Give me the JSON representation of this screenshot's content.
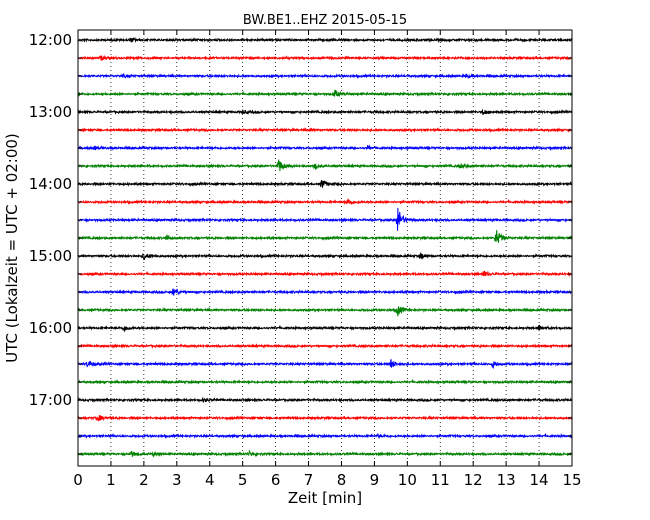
{
  "chart_data": {
    "type": "line",
    "title": "BW.BE1..EHZ 2015-05-15",
    "xlabel": "Zeit  [min]",
    "ylabel": "UTC (Lokalzeit = UTC + 02:00)",
    "xlim": [
      0,
      15
    ],
    "x_ticks": [
      "0",
      "1",
      "2",
      "3",
      "4",
      "5",
      "6",
      "7",
      "8",
      "9",
      "10",
      "11",
      "12",
      "13",
      "14",
      "15"
    ],
    "y_tick_labels": [
      "12:00",
      "13:00",
      "14:00",
      "15:00",
      "16:00",
      "17:00"
    ],
    "grid": "vertical dotted",
    "trace_colors": [
      "#000000",
      "#ff0000",
      "#0000ff",
      "#008000"
    ],
    "trace_interval_minutes": 15,
    "series": [
      {
        "start": "12:00",
        "color": "#000000",
        "events": [
          [
            1.6,
            0.4
          ]
        ]
      },
      {
        "start": "12:15",
        "color": "#ff0000",
        "events": [
          [
            0.7,
            0.5
          ]
        ]
      },
      {
        "start": "12:30",
        "color": "#0000ff",
        "events": [
          [
            1.4,
            0.3
          ],
          [
            11.8,
            0.4
          ]
        ]
      },
      {
        "start": "12:45",
        "color": "#008000",
        "events": [
          [
            7.8,
            0.9
          ]
        ]
      },
      {
        "start": "13:00",
        "color": "#000000",
        "events": [
          [
            5.0,
            0.4
          ],
          [
            12.3,
            0.7
          ]
        ]
      },
      {
        "start": "13:15",
        "color": "#ff0000",
        "events": [
          [
            7.0,
            0.3
          ]
        ]
      },
      {
        "start": "13:30",
        "color": "#0000ff",
        "events": [
          [
            0.5,
            0.4
          ],
          [
            8.8,
            0.4
          ]
        ]
      },
      {
        "start": "13:45",
        "color": "#008000",
        "events": [
          [
            6.1,
            1.6
          ],
          [
            7.2,
            0.6
          ],
          [
            11.6,
            0.6
          ]
        ]
      },
      {
        "start": "14:00",
        "color": "#000000",
        "events": [
          [
            7.4,
            1.1
          ]
        ]
      },
      {
        "start": "14:15",
        "color": "#ff0000",
        "events": [
          [
            8.2,
            0.8
          ]
        ]
      },
      {
        "start": "14:30",
        "color": "#0000ff",
        "events": [
          [
            9.7,
            3.2
          ]
        ]
      },
      {
        "start": "14:45",
        "color": "#008000",
        "events": [
          [
            2.7,
            0.6
          ],
          [
            12.7,
            2.0
          ]
        ]
      },
      {
        "start": "15:00",
        "color": "#000000",
        "events": [
          [
            2.0,
            1.0
          ],
          [
            10.4,
            0.7
          ]
        ]
      },
      {
        "start": "15:15",
        "color": "#ff0000",
        "events": [
          [
            12.3,
            0.7
          ]
        ]
      },
      {
        "start": "15:30",
        "color": "#0000ff",
        "events": [
          [
            2.9,
            1.0
          ]
        ]
      },
      {
        "start": "15:45",
        "color": "#008000",
        "events": [
          [
            9.7,
            1.4
          ]
        ]
      },
      {
        "start": "16:00",
        "color": "#000000",
        "events": [
          [
            1.4,
            0.6
          ],
          [
            14.0,
            0.7
          ]
        ]
      },
      {
        "start": "16:15",
        "color": "#ff0000",
        "events": []
      },
      {
        "start": "16:30",
        "color": "#0000ff",
        "events": [
          [
            0.3,
            0.9
          ],
          [
            9.5,
            1.1
          ],
          [
            12.6,
            0.8
          ]
        ]
      },
      {
        "start": "16:45",
        "color": "#008000",
        "events": []
      },
      {
        "start": "17:00",
        "color": "#000000",
        "events": [
          [
            3.8,
            0.4
          ]
        ]
      },
      {
        "start": "17:15",
        "color": "#ff0000",
        "events": [
          [
            0.6,
            0.8
          ]
        ]
      },
      {
        "start": "17:30",
        "color": "#0000ff",
        "events": [
          [
            9.1,
            0.4
          ]
        ]
      },
      {
        "start": "17:45",
        "color": "#008000",
        "events": [
          [
            1.6,
            0.7
          ],
          [
            2.3,
            0.5
          ],
          [
            5.2,
            0.5
          ]
        ]
      }
    ]
  }
}
